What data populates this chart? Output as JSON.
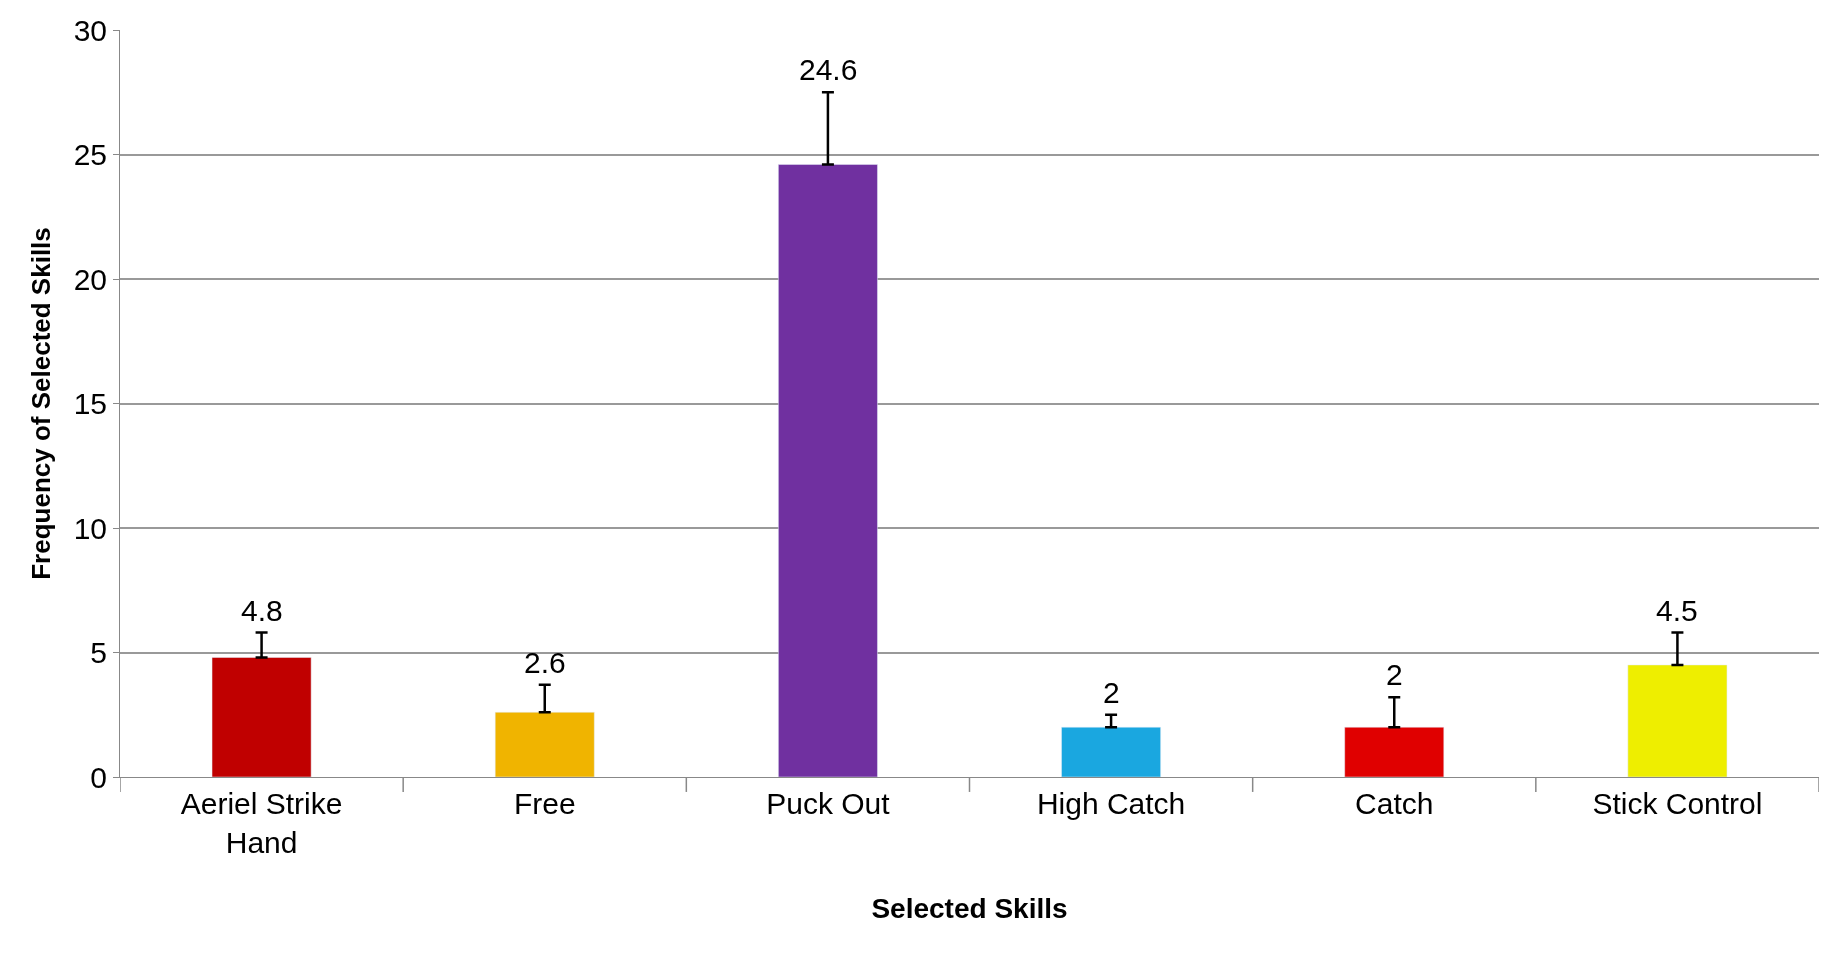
{
  "chart_data": {
    "type": "bar",
    "xlabel": "Selected Skills",
    "ylabel": "Frequency of Selected Skills",
    "categories": [
      "Aeriel Strike Hand",
      "Free",
      "Puck Out",
      "High Catch",
      "Catch",
      "Stick Control"
    ],
    "values": [
      4.8,
      2.6,
      24.6,
      2,
      2,
      4.5
    ],
    "colors": [
      "#c00000",
      "#f0b400",
      "#7030a0",
      "#1aa7e0",
      "#e00000",
      "#eeee00"
    ],
    "errors": [
      [
        4.8,
        5.8
      ],
      [
        2.6,
        3.7
      ],
      [
        24.6,
        27.5
      ],
      [
        2,
        2.5
      ],
      [
        2,
        3.2
      ],
      [
        4.5,
        5.8
      ]
    ],
    "ylim": [
      0,
      30
    ],
    "yticks": [
      0,
      5,
      10,
      15,
      20,
      25,
      30
    ],
    "grid": "y",
    "data_labels": true,
    "legend": false
  }
}
